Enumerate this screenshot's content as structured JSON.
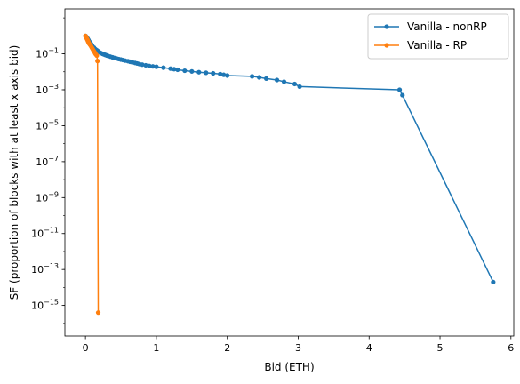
{
  "chart_data": {
    "type": "line",
    "title": "",
    "xlabel": "Bid (ETH)",
    "ylabel": "SF (proportion of blocks with at least x axis bid)",
    "yscale": "log",
    "xlim": [
      -0.29,
      6.04
    ],
    "ylim_exponent": [
      -16.7,
      1.5
    ],
    "xticks": [
      0,
      1,
      2,
      3,
      4,
      5,
      6
    ],
    "yticks_exponent": [
      -15,
      -13,
      -11,
      -9,
      -7,
      -5,
      -3,
      -1
    ],
    "ytick_base": "10",
    "legend_position": "top-right",
    "series": [
      {
        "name": "Vanilla - nonRP",
        "color": "#1f77b4",
        "points": [
          [
            0.0,
            1.0
          ],
          [
            0.005,
            0.95
          ],
          [
            0.01,
            0.9
          ],
          [
            0.015,
            0.85
          ],
          [
            0.02,
            0.8
          ],
          [
            0.025,
            0.75
          ],
          [
            0.03,
            0.7
          ],
          [
            0.035,
            0.65
          ],
          [
            0.04,
            0.6
          ],
          [
            0.045,
            0.55
          ],
          [
            0.05,
            0.5
          ],
          [
            0.06,
            0.45
          ],
          [
            0.07,
            0.4
          ],
          [
            0.08,
            0.35
          ],
          [
            0.09,
            0.3
          ],
          [
            0.1,
            0.26
          ],
          [
            0.12,
            0.22
          ],
          [
            0.14,
            0.18
          ],
          [
            0.16,
            0.16
          ],
          [
            0.18,
            0.14
          ],
          [
            0.2,
            0.12
          ],
          [
            0.22,
            0.11
          ],
          [
            0.24,
            0.1
          ],
          [
            0.26,
            0.093
          ],
          [
            0.28,
            0.087
          ],
          [
            0.3,
            0.081
          ],
          [
            0.32,
            0.076
          ],
          [
            0.35,
            0.07
          ],
          [
            0.38,
            0.064
          ],
          [
            0.41,
            0.059
          ],
          [
            0.44,
            0.055
          ],
          [
            0.47,
            0.051
          ],
          [
            0.5,
            0.048
          ],
          [
            0.53,
            0.045
          ],
          [
            0.56,
            0.042
          ],
          [
            0.6,
            0.039
          ],
          [
            0.63,
            0.036
          ],
          [
            0.66,
            0.034
          ],
          [
            0.7,
            0.031
          ],
          [
            0.73,
            0.029
          ],
          [
            0.76,
            0.027
          ],
          [
            0.8,
            0.025
          ],
          [
            0.85,
            0.023
          ],
          [
            0.9,
            0.021
          ],
          [
            0.95,
            0.02
          ],
          [
            1.0,
            0.019
          ],
          [
            1.1,
            0.017
          ],
          [
            1.2,
            0.015
          ],
          [
            1.25,
            0.014
          ],
          [
            1.3,
            0.013
          ],
          [
            1.4,
            0.0115
          ],
          [
            1.5,
            0.0105
          ],
          [
            1.6,
            0.0095
          ],
          [
            1.7,
            0.0088
          ],
          [
            1.8,
            0.0082
          ],
          [
            1.9,
            0.0075
          ],
          [
            1.95,
            0.0068
          ],
          [
            2.0,
            0.0062
          ],
          [
            2.35,
            0.0056
          ],
          [
            2.45,
            0.0049
          ],
          [
            2.55,
            0.0042
          ],
          [
            2.7,
            0.0035
          ],
          [
            2.8,
            0.0028
          ],
          [
            2.95,
            0.0021
          ],
          [
            3.02,
            0.0015
          ],
          [
            4.43,
            0.001
          ],
          [
            4.47,
            0.0005
          ],
          [
            5.75,
            2e-14
          ]
        ]
      },
      {
        "name": "Vanilla - RP",
        "color": "#ff7f0e",
        "points": [
          [
            0.0,
            1.0
          ],
          [
            0.005,
            0.92
          ],
          [
            0.01,
            0.84
          ],
          [
            0.015,
            0.76
          ],
          [
            0.02,
            0.7
          ],
          [
            0.025,
            0.64
          ],
          [
            0.03,
            0.58
          ],
          [
            0.035,
            0.52
          ],
          [
            0.04,
            0.47
          ],
          [
            0.045,
            0.42
          ],
          [
            0.05,
            0.38
          ],
          [
            0.06,
            0.34
          ],
          [
            0.07,
            0.3
          ],
          [
            0.08,
            0.26
          ],
          [
            0.09,
            0.22
          ],
          [
            0.1,
            0.19
          ],
          [
            0.11,
            0.16
          ],
          [
            0.12,
            0.14
          ],
          [
            0.13,
            0.12
          ],
          [
            0.14,
            0.1
          ],
          [
            0.15,
            0.09
          ],
          [
            0.16,
            0.08
          ],
          [
            0.17,
            0.04
          ],
          [
            0.18,
            4e-16
          ]
        ]
      }
    ]
  }
}
